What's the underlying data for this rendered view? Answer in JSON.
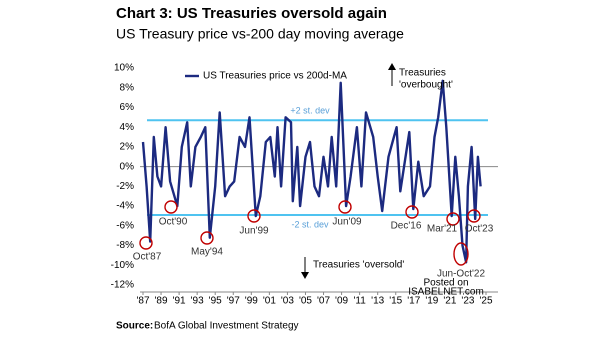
{
  "chart_data": {
    "type": "line",
    "title": "Chart 3: US Treasuries oversold again",
    "subtitle": "US Treasury price vs-200 day moving average",
    "source_label": "Source:",
    "source": "BofA Global Investment Strategy",
    "watermark": [
      "Posted on",
      "ISABELNET.com"
    ],
    "x": [
      1987.0,
      1987.4,
      1987.8,
      1988.2,
      1988.6,
      1989.0,
      1989.5,
      1990.0,
      1990.8,
      1991.3,
      1991.9,
      1992.3,
      1992.8,
      1993.4,
      1993.9,
      1994.4,
      1995.0,
      1995.5,
      1996.1,
      1996.6,
      1997.1,
      1997.7,
      1998.3,
      1998.8,
      1999.5,
      2000.0,
      2000.6,
      2001.1,
      2001.6,
      2001.9,
      2002.3,
      2002.8,
      2003.4,
      2003.6,
      2004.1,
      2004.4,
      2005.0,
      2005.5,
      2006.0,
      2006.5,
      2007.0,
      2007.5,
      2007.9,
      2008.4,
      2008.9,
      2009.5,
      2010.0,
      2010.7,
      2011.2,
      2011.7,
      2012.5,
      2013.0,
      2013.5,
      2014.2,
      2014.8,
      2015.1,
      2015.5,
      2016.5,
      2016.95,
      2017.5,
      2018.1,
      2018.8,
      2019.3,
      2019.7,
      2020.2,
      2020.6,
      2021.2,
      2021.6,
      2022.0,
      2022.4,
      2022.8,
      2023.0,
      2023.4,
      2023.8,
      2024.1,
      2024.4
    ],
    "series": [
      {
        "name": "US Treasuries price vs 200d-MA",
        "color": "#1c2a80",
        "values": [
          2.5,
          -2,
          -7.6,
          3,
          -1,
          -2,
          4,
          -1.5,
          -4,
          2,
          4.5,
          -2,
          2,
          3,
          4,
          -7.2,
          -2,
          5.5,
          -3,
          -2,
          -1.5,
          3,
          2,
          5,
          -5,
          -3,
          2.5,
          3,
          -1,
          4,
          -2,
          5,
          4.5,
          -3.5,
          2,
          -4,
          1,
          2.5,
          -2,
          -3,
          1,
          -2,
          3,
          -2,
          8.5,
          -4,
          -1,
          4,
          -2,
          5.5,
          3,
          -1,
          -4.5,
          1,
          3,
          4,
          -2.5,
          3.5,
          -4.3,
          0.5,
          -3,
          -2,
          3,
          5,
          8.7,
          4,
          -5,
          1,
          -3,
          -8,
          -9.7,
          -2,
          2,
          -5.3,
          1,
          -2
        ]
      }
    ],
    "xlim": [
      1987,
      2025
    ],
    "ylim": [
      -12,
      10
    ],
    "xticks": [
      {
        "value": 1987,
        "label": "'87"
      },
      {
        "value": 1989,
        "label": "'89"
      },
      {
        "value": 1991,
        "label": "'91"
      },
      {
        "value": 1993,
        "label": "'93"
      },
      {
        "value": 1995,
        "label": "'95"
      },
      {
        "value": 1997,
        "label": "'97"
      },
      {
        "value": 1999,
        "label": "'99"
      },
      {
        "value": 2001,
        "label": "'01"
      },
      {
        "value": 2003,
        "label": "'03"
      },
      {
        "value": 2005,
        "label": "'05"
      },
      {
        "value": 2007,
        "label": "'07"
      },
      {
        "value": 2009,
        "label": "'09"
      },
      {
        "value": 2011,
        "label": "'11"
      },
      {
        "value": 2013,
        "label": "'13"
      },
      {
        "value": 2015,
        "label": "'15"
      },
      {
        "value": 2017,
        "label": "'17"
      },
      {
        "value": 2019,
        "label": "'19"
      },
      {
        "value": 2021,
        "label": "'21"
      },
      {
        "value": 2023,
        "label": "'23"
      },
      {
        "value": 2025,
        "label": "'25"
      }
    ],
    "yticks": [
      {
        "value": 10,
        "label": "10%"
      },
      {
        "value": 8,
        "label": "8%"
      },
      {
        "value": 6,
        "label": "6%"
      },
      {
        "value": 4,
        "label": "4%"
      },
      {
        "value": 2,
        "label": "2%"
      },
      {
        "value": 0,
        "label": "0%"
      },
      {
        "value": -2,
        "label": "-2%"
      },
      {
        "value": -4,
        "label": "-4%"
      },
      {
        "value": -6,
        "label": "-6%"
      },
      {
        "value": -8,
        "label": "-8%"
      },
      {
        "value": -10,
        "label": "-10%"
      },
      {
        "value": -12,
        "label": "-12%"
      }
    ],
    "zero_line": true,
    "reference_lines": [
      {
        "value": 4.7,
        "label": "+2 st. dev",
        "color": "#4fc3f0"
      },
      {
        "value": -4.9,
        "label": "-2 st. dev",
        "color": "#4fc3f0"
      }
    ],
    "overbought_note": [
      "Treasuries",
      "'overbought'"
    ],
    "oversold_note": "Treasuries 'oversold'",
    "events": [
      "Oct'87",
      "Oct'90",
      "May'94",
      "Jun'99",
      "Jun'09",
      "Dec'16",
      "Mar'21",
      "Jun-Oct'22",
      "Oct'23"
    ],
    "event_color": "#c00000",
    "legend": "top-left"
  }
}
